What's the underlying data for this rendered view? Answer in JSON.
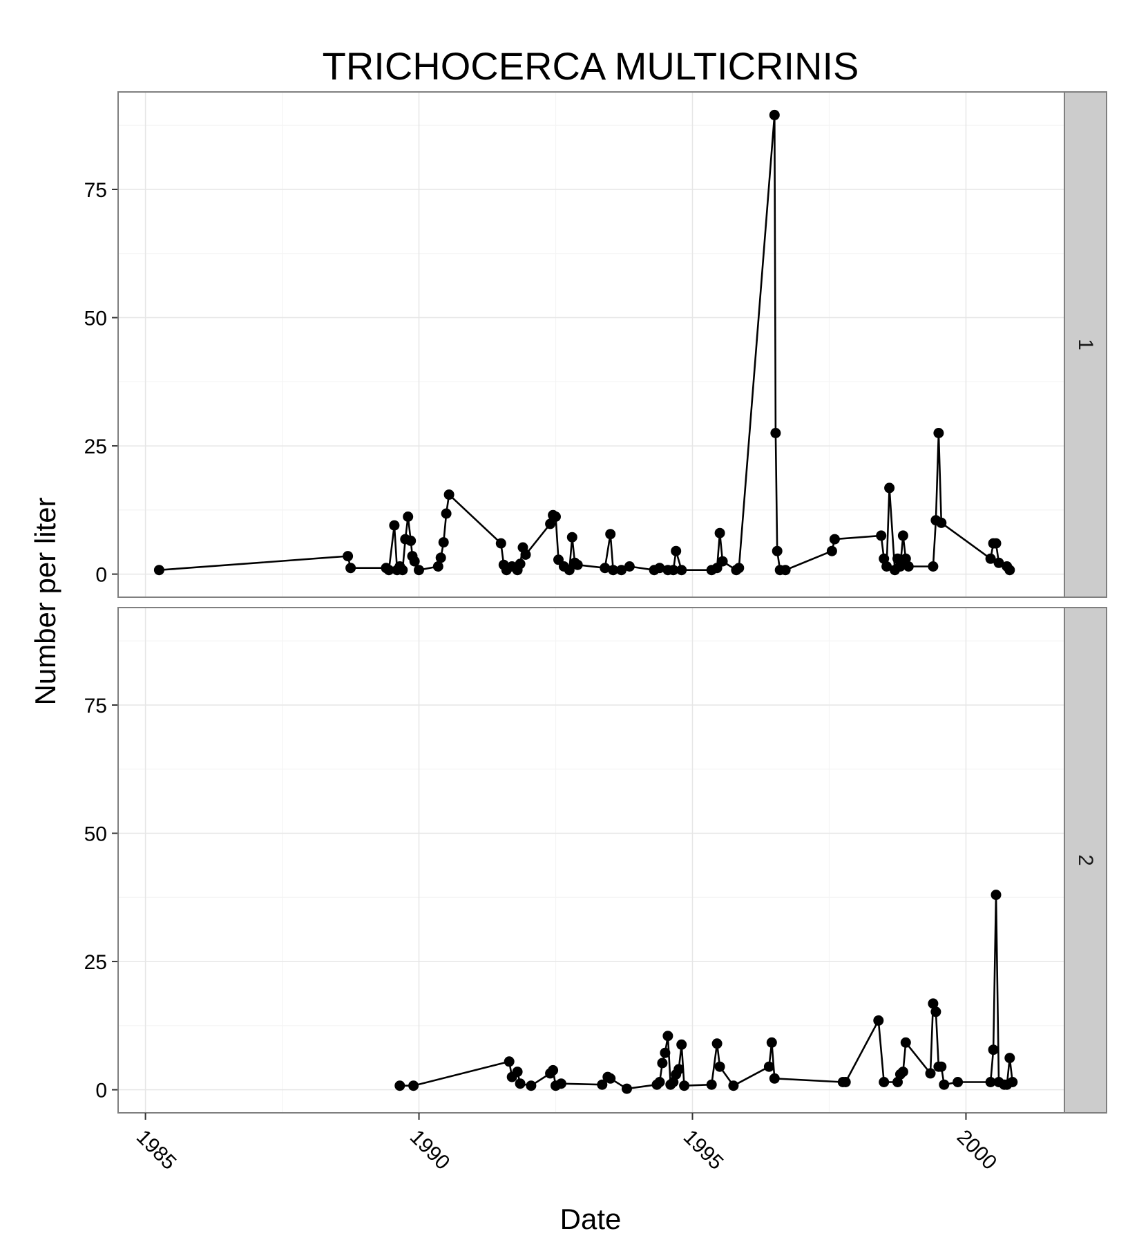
{
  "chart_data": {
    "type": "line",
    "title": "TRICHOCERCA MULTICRINIS",
    "xlabel": "Date",
    "ylabel": "Number per liter",
    "x_ticks": [
      "1985",
      "1990",
      "1995",
      "2000"
    ],
    "x_tick_values": [
      1985,
      1990,
      1995,
      2000
    ],
    "xlim": [
      1984.5,
      2001.8
    ],
    "y_ticks": [
      "0",
      "25",
      "50",
      "75"
    ],
    "y_tick_values": [
      0,
      25,
      50,
      75
    ],
    "ylim": [
      -4.5,
      94
    ],
    "grid": true,
    "marker": "circle",
    "panels": [
      {
        "strip_label": "1",
        "points": [
          [
            1985.25,
            0.8
          ],
          [
            1988.7,
            3.5
          ],
          [
            1988.75,
            1.2
          ],
          [
            1989.4,
            1.2
          ],
          [
            1989.45,
            0.8
          ],
          [
            1989.55,
            9.5
          ],
          [
            1989.6,
            0.8
          ],
          [
            1989.65,
            1.5
          ],
          [
            1989.7,
            0.8
          ],
          [
            1989.75,
            6.8
          ],
          [
            1989.8,
            11.2
          ],
          [
            1989.85,
            6.5
          ],
          [
            1989.88,
            3.5
          ],
          [
            1989.92,
            2.5
          ],
          [
            1990.0,
            0.8
          ],
          [
            1990.35,
            1.5
          ],
          [
            1990.4,
            3.2
          ],
          [
            1990.45,
            6.2
          ],
          [
            1990.5,
            11.8
          ],
          [
            1990.55,
            15.5
          ],
          [
            1991.5,
            6.0
          ],
          [
            1991.55,
            1.8
          ],
          [
            1991.6,
            0.8
          ],
          [
            1991.7,
            1.5
          ],
          [
            1991.8,
            0.8
          ],
          [
            1991.85,
            2.0
          ],
          [
            1991.9,
            5.2
          ],
          [
            1991.95,
            3.8
          ],
          [
            1992.4,
            9.8
          ],
          [
            1992.45,
            11.5
          ],
          [
            1992.5,
            11.2
          ],
          [
            1992.55,
            2.8
          ],
          [
            1992.65,
            1.5
          ],
          [
            1992.75,
            0.8
          ],
          [
            1992.8,
            7.2
          ],
          [
            1992.85,
            2.2
          ],
          [
            1992.9,
            1.8
          ],
          [
            1993.4,
            1.2
          ],
          [
            1993.5,
            7.8
          ],
          [
            1993.55,
            0.8
          ],
          [
            1993.7,
            0.8
          ],
          [
            1993.85,
            1.5
          ],
          [
            1994.3,
            0.8
          ],
          [
            1994.4,
            1.2
          ],
          [
            1994.55,
            0.8
          ],
          [
            1994.65,
            0.8
          ],
          [
            1994.7,
            4.5
          ],
          [
            1994.8,
            0.8
          ],
          [
            1995.35,
            0.8
          ],
          [
            1995.45,
            1.2
          ],
          [
            1995.5,
            8.0
          ],
          [
            1995.55,
            2.5
          ],
          [
            1995.8,
            0.8
          ],
          [
            1995.85,
            1.2
          ],
          [
            1996.5,
            89.5
          ],
          [
            1996.52,
            27.5
          ],
          [
            1996.55,
            4.5
          ],
          [
            1996.6,
            0.8
          ],
          [
            1996.7,
            0.8
          ],
          [
            1997.55,
            4.5
          ],
          [
            1997.6,
            6.8
          ],
          [
            1998.45,
            7.5
          ],
          [
            1998.5,
            3.0
          ],
          [
            1998.55,
            1.5
          ],
          [
            1998.6,
            16.8
          ],
          [
            1998.7,
            0.8
          ],
          [
            1998.75,
            3.0
          ],
          [
            1998.8,
            1.5
          ],
          [
            1998.85,
            7.5
          ],
          [
            1998.9,
            3.0
          ],
          [
            1998.95,
            1.5
          ],
          [
            1999.4,
            1.5
          ],
          [
            1999.45,
            10.5
          ],
          [
            1999.5,
            27.5
          ],
          [
            1999.55,
            10.0
          ],
          [
            2000.45,
            3.0
          ],
          [
            2000.5,
            6.0
          ],
          [
            2000.55,
            6.0
          ],
          [
            2000.6,
            2.2
          ],
          [
            2000.75,
            1.5
          ],
          [
            2000.8,
            0.8
          ]
        ]
      },
      {
        "strip_label": "2",
        "points": [
          [
            1989.65,
            0.8
          ],
          [
            1989.9,
            0.8
          ],
          [
            1991.65,
            5.5
          ],
          [
            1991.7,
            2.5
          ],
          [
            1991.8,
            3.5
          ],
          [
            1991.85,
            1.2
          ],
          [
            1992.05,
            0.8
          ],
          [
            1992.4,
            3.2
          ],
          [
            1992.45,
            3.8
          ],
          [
            1992.5,
            0.8
          ],
          [
            1992.6,
            1.2
          ],
          [
            1993.35,
            1.0
          ],
          [
            1993.45,
            2.5
          ],
          [
            1993.5,
            2.2
          ],
          [
            1993.8,
            0.2
          ],
          [
            1994.35,
            1.0
          ],
          [
            1994.4,
            1.5
          ],
          [
            1994.45,
            5.2
          ],
          [
            1994.5,
            7.2
          ],
          [
            1994.55,
            10.5
          ],
          [
            1994.6,
            1.0
          ],
          [
            1994.65,
            1.5
          ],
          [
            1994.7,
            3.0
          ],
          [
            1994.75,
            4.0
          ],
          [
            1994.8,
            8.8
          ],
          [
            1994.85,
            0.8
          ],
          [
            1995.35,
            1.0
          ],
          [
            1995.45,
            9.0
          ],
          [
            1995.5,
            4.5
          ],
          [
            1995.75,
            0.8
          ],
          [
            1996.4,
            4.5
          ],
          [
            1996.45,
            9.2
          ],
          [
            1996.5,
            2.2
          ],
          [
            1997.75,
            1.5
          ],
          [
            1997.8,
            1.5
          ],
          [
            1998.4,
            13.5
          ],
          [
            1998.5,
            1.5
          ],
          [
            1998.75,
            1.5
          ],
          [
            1998.8,
            3.0
          ],
          [
            1998.85,
            3.5
          ],
          [
            1998.9,
            9.2
          ],
          [
            1999.35,
            3.2
          ],
          [
            1999.4,
            16.8
          ],
          [
            1999.45,
            15.2
          ],
          [
            1999.5,
            4.5
          ],
          [
            1999.55,
            4.5
          ],
          [
            1999.6,
            1.0
          ],
          [
            1999.85,
            1.5
          ],
          [
            2000.45,
            1.5
          ],
          [
            2000.5,
            7.8
          ],
          [
            2000.55,
            38.0
          ],
          [
            2000.6,
            1.5
          ],
          [
            2000.7,
            1.0
          ],
          [
            2000.75,
            1.0
          ],
          [
            2000.8,
            6.2
          ],
          [
            2000.85,
            1.5
          ]
        ]
      }
    ]
  }
}
